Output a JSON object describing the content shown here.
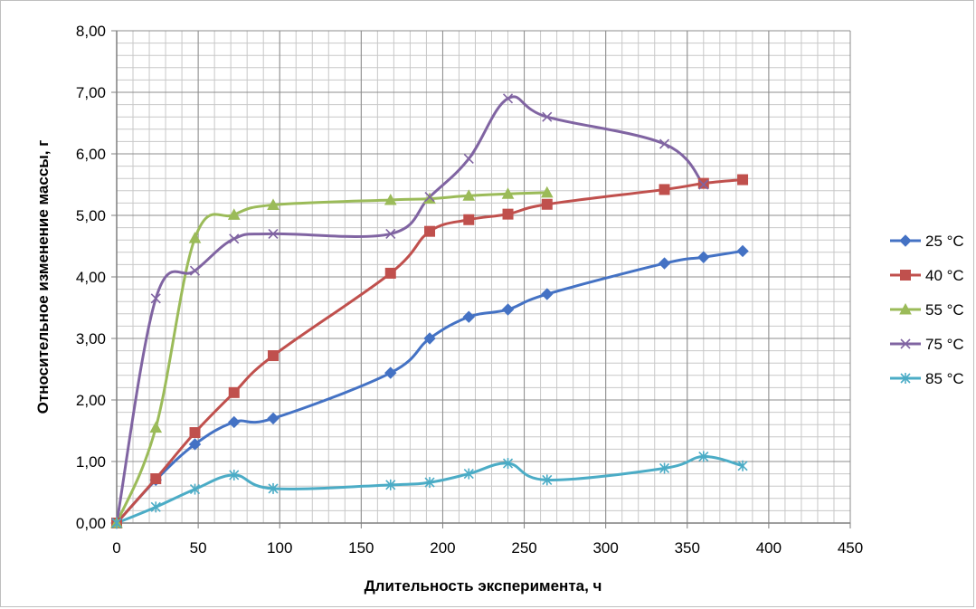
{
  "chart_data": {
    "type": "line",
    "xlabel": "Длительность эксперимента, ч",
    "ylabel": "Относительное изменение массы, г",
    "xlim": [
      0,
      450
    ],
    "ylim": [
      0,
      8
    ],
    "x_ticks": [
      0,
      50,
      100,
      150,
      200,
      250,
      300,
      350,
      400,
      450
    ],
    "y_ticks": [
      0,
      1,
      2,
      3,
      4,
      5,
      6,
      7,
      8
    ],
    "x_tick_labels": [
      "0",
      "50",
      "100",
      "150",
      "200",
      "250",
      "300",
      "350",
      "400",
      "450"
    ],
    "y_tick_labels": [
      "0,00",
      "1,00",
      "2,00",
      "3,00",
      "4,00",
      "5,00",
      "6,00",
      "7,00",
      "8,00"
    ],
    "grid": true,
    "smooth": true,
    "legend_position": "right",
    "series": [
      {
        "name": "25 °C",
        "color": "#4472C4",
        "marker": "diamond",
        "x": [
          0,
          24,
          48,
          72,
          96,
          168,
          192,
          216,
          240,
          264,
          336,
          360,
          384
        ],
        "y": [
          0,
          0.7,
          1.28,
          1.64,
          1.7,
          2.44,
          3.0,
          3.35,
          3.47,
          3.72,
          4.22,
          4.32,
          4.42
        ]
      },
      {
        "name": "40 °C",
        "color": "#C0504D",
        "marker": "square",
        "x": [
          0,
          24,
          48,
          72,
          96,
          168,
          192,
          216,
          240,
          264,
          336,
          360,
          384
        ],
        "y": [
          0,
          0.72,
          1.47,
          2.12,
          2.72,
          4.06,
          4.74,
          4.93,
          5.02,
          5.18,
          5.42,
          5.52,
          5.58
        ]
      },
      {
        "name": "55 °C",
        "color": "#9BBB59",
        "marker": "triangle",
        "x": [
          0,
          24,
          48,
          72,
          96,
          168,
          192,
          216,
          240,
          264
        ],
        "y": [
          0,
          1.55,
          4.63,
          5.01,
          5.17,
          5.25,
          5.27,
          5.32,
          5.35,
          5.37
        ]
      },
      {
        "name": "75 °C",
        "color": "#8064A2",
        "marker": "x",
        "x": [
          0,
          24,
          48,
          72,
          96,
          168,
          192,
          216,
          240,
          264,
          336,
          360
        ],
        "y": [
          0,
          3.65,
          4.1,
          4.62,
          4.7,
          4.7,
          5.3,
          5.92,
          6.9,
          6.6,
          6.16,
          5.5
        ]
      },
      {
        "name": "85 °C",
        "color": "#4BACC6",
        "marker": "star",
        "x": [
          0,
          24,
          48,
          72,
          96,
          168,
          192,
          216,
          240,
          264,
          336,
          360,
          384
        ],
        "y": [
          0,
          0.26,
          0.55,
          0.78,
          0.56,
          0.62,
          0.66,
          0.8,
          0.97,
          0.7,
          0.89,
          1.08,
          0.93
        ]
      }
    ]
  }
}
